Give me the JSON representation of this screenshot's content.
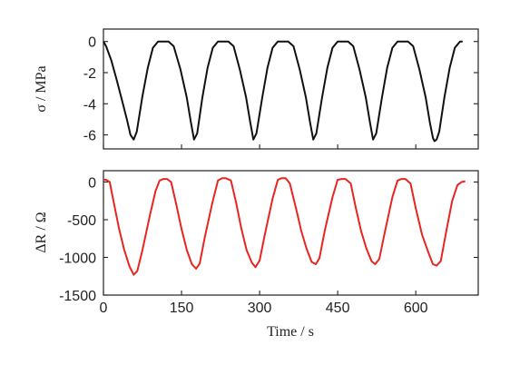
{
  "chart_data": [
    {
      "type": "line",
      "ylabel": "σ / MPa",
      "xlabel": "",
      "xlim": [
        0,
        720
      ],
      "ylim": [
        -6.9,
        0.8
      ],
      "yticks": [
        0,
        -2,
        -4,
        -6
      ],
      "grid": false,
      "legend": "none",
      "series": [
        {
          "color": "#111111",
          "x": [
            0,
            5,
            15,
            25,
            35,
            45,
            52,
            58,
            64,
            75,
            85,
            95,
            105,
            115,
            125,
            135,
            148,
            160,
            168,
            174,
            180,
            190,
            200,
            210,
            220,
            230,
            240,
            250,
            262,
            274,
            282,
            288,
            294,
            305,
            315,
            325,
            335,
            345,
            355,
            365,
            377,
            389,
            397,
            403,
            409,
            420,
            430,
            440,
            450,
            460,
            470,
            480,
            492,
            504,
            512,
            518,
            524,
            535,
            545,
            555,
            565,
            575,
            585,
            595,
            607,
            619,
            627,
            633,
            636,
            640,
            645,
            655,
            665,
            675,
            685,
            690
          ],
          "y": [
            0,
            -0.3,
            -1.2,
            -2.4,
            -3.7,
            -5.0,
            -6.0,
            -6.3,
            -5.8,
            -3.5,
            -1.7,
            -0.4,
            0,
            0,
            0,
            -0.3,
            -1.8,
            -3.6,
            -5.2,
            -6.3,
            -5.9,
            -3.6,
            -1.7,
            -0.4,
            0,
            0,
            0,
            -0.3,
            -1.8,
            -3.6,
            -5.2,
            -6.3,
            -5.9,
            -3.6,
            -1.7,
            -0.4,
            0,
            0,
            0,
            -0.3,
            -1.8,
            -3.6,
            -5.2,
            -6.3,
            -5.9,
            -3.6,
            -1.7,
            -0.4,
            0,
            0,
            0,
            -0.3,
            -1.8,
            -3.6,
            -5.2,
            -6.3,
            -5.9,
            -3.6,
            -1.7,
            -0.4,
            0,
            0,
            0,
            -0.3,
            -1.8,
            -3.6,
            -5.2,
            -6.2,
            -6.4,
            -6.3,
            -5.8,
            -3.6,
            -1.7,
            -0.4,
            0,
            0
          ]
        }
      ]
    },
    {
      "type": "line",
      "ylabel": "ΔR / Ω",
      "xlabel": "Time / s",
      "xlim": [
        0,
        720
      ],
      "ylim": [
        -1500,
        150
      ],
      "yticks": [
        0,
        -500,
        -1000,
        -1500
      ],
      "xticks": [
        0,
        150,
        300,
        450,
        600
      ],
      "grid": false,
      "legend": "none",
      "series": [
        {
          "color": "#e8251f",
          "x": [
            0,
            5,
            12,
            20,
            30,
            40,
            50,
            58,
            65,
            75,
            90,
            100,
            108,
            115,
            122,
            130,
            140,
            150,
            160,
            170,
            178,
            185,
            195,
            210,
            220,
            228,
            235,
            245,
            255,
            265,
            275,
            285,
            292,
            300,
            310,
            325,
            335,
            342,
            350,
            358,
            370,
            380,
            390,
            400,
            408,
            415,
            425,
            440,
            450,
            458,
            465,
            475,
            485,
            495,
            505,
            515,
            522,
            530,
            540,
            555,
            565,
            573,
            580,
            590,
            600,
            612,
            625,
            633,
            640,
            648,
            660,
            670,
            680,
            688,
            695
          ],
          "y": [
            30,
            30,
            0,
            -280,
            -620,
            -900,
            -1120,
            -1230,
            -1180,
            -900,
            -420,
            -120,
            20,
            40,
            40,
            0,
            -300,
            -620,
            -900,
            -1090,
            -1150,
            -1080,
            -720,
            -250,
            20,
            50,
            50,
            20,
            -280,
            -620,
            -900,
            -1070,
            -1130,
            -1040,
            -700,
            -220,
            30,
            50,
            50,
            -20,
            -350,
            -650,
            -880,
            -1060,
            -1090,
            -1010,
            -650,
            -200,
            30,
            40,
            40,
            -20,
            -350,
            -650,
            -880,
            -1050,
            -1090,
            -1020,
            -680,
            -200,
            20,
            40,
            40,
            -20,
            -350,
            -700,
            -950,
            -1090,
            -1110,
            -1050,
            -600,
            -250,
            -40,
            0,
            10
          ]
        }
      ]
    }
  ]
}
